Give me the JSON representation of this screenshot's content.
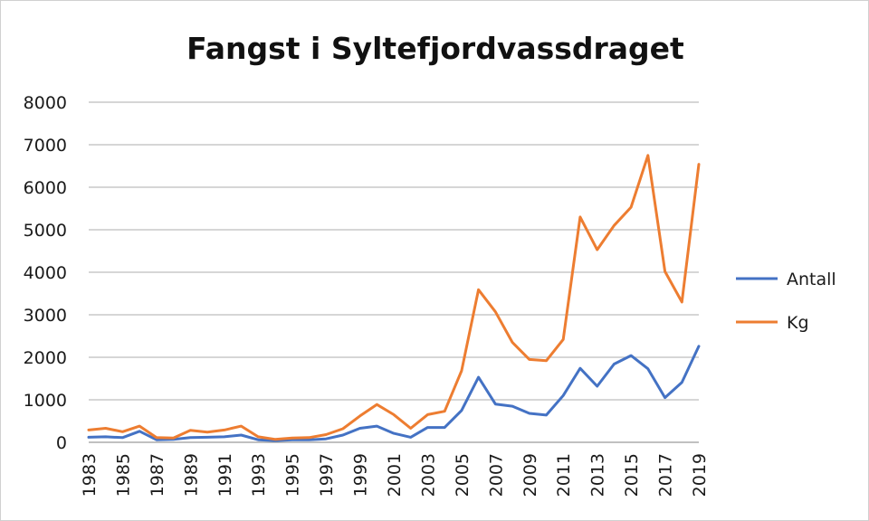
{
  "chart_data": {
    "type": "line",
    "title": "Fangst i Syltefjordvassdraget",
    "xlabel": "",
    "ylabel": "",
    "x": [
      1983,
      1984,
      1985,
      1986,
      1987,
      1988,
      1989,
      1990,
      1991,
      1992,
      1993,
      1994,
      1995,
      1996,
      1997,
      1998,
      1999,
      2000,
      2001,
      2002,
      2003,
      2004,
      2005,
      2006,
      2007,
      2008,
      2009,
      2010,
      2011,
      2012,
      2013,
      2014,
      2015,
      2016,
      2017,
      2018,
      2019
    ],
    "x_tick_labels": [
      "1983",
      "1985",
      "1987",
      "1989",
      "1991",
      "1993",
      "1995",
      "1997",
      "1999",
      "2001",
      "2003",
      "2005",
      "2007",
      "2009",
      "2011",
      "2013",
      "2015",
      "2017",
      "2019"
    ],
    "ylim": [
      0,
      8000
    ],
    "y_ticks": [
      0,
      1000,
      2000,
      3000,
      4000,
      5000,
      6000,
      7000,
      8000
    ],
    "y_tick_labels": [
      "0",
      "1000",
      "2000",
      "3000",
      "4000",
      "5000",
      "6000",
      "7000",
      "8000"
    ],
    "grid": "horizontal",
    "legend": "right",
    "series": [
      {
        "name": "Antall",
        "color": "#4472c4",
        "values": [
          120,
          130,
          110,
          260,
          60,
          70,
          110,
          120,
          130,
          170,
          60,
          40,
          60,
          60,
          80,
          170,
          330,
          380,
          210,
          120,
          350,
          350,
          750,
          1530,
          900,
          850,
          680,
          640,
          1100,
          1740,
          1320,
          1840,
          2040,
          1730,
          1050,
          1410,
          2260
        ]
      },
      {
        "name": "Kg",
        "color": "#ed7d31",
        "values": [
          290,
          330,
          250,
          380,
          110,
          100,
          280,
          240,
          290,
          380,
          130,
          70,
          100,
          110,
          180,
          320,
          620,
          890,
          650,
          330,
          650,
          730,
          1680,
          3590,
          3070,
          2350,
          1950,
          1920,
          2420,
          5300,
          4530,
          5100,
          5530,
          6750,
          4020,
          3300,
          6540
        ]
      }
    ]
  }
}
